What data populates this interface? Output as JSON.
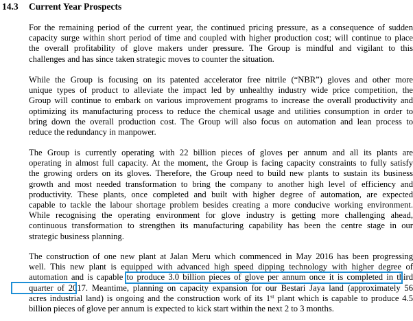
{
  "section": {
    "number": "14.3",
    "title": "Current Year Prospects"
  },
  "paragraphs": [
    [
      "For the remaining period of the current year, the continued pricing pressure, as a consequence of sudden",
      "capacity surge within short period of time and coupled with higher production cost; will continue to place",
      "the overall profitability of glove makers under pressure. The Group is mindful and vigilant to this",
      "challenges and has since taken strategic moves to counter the situation."
    ],
    [
      "While the Group is focusing on its patented accelerator free nitrile (“NBR”) gloves and other more",
      "unique types of product to alleviate the impact led by unhealthy industry wide price competition, the",
      "Group will continue to embark on various improvement programs to increase the overall productivity and",
      "optimizing its manufacturing process to reduce the chemical usage and utilities consumption in order to",
      "bring down the overall production cost. The Group will also focus on automation and lean process to",
      "reduce the redundancy in manpower."
    ],
    [
      "The Group is currently operating with 22 billion pieces of gloves per annum and all its plants are",
      "operating in almost full capacity. At the moment, the Group is facing capacity constraints to fully satisfy",
      "the growing orders on its gloves. Therefore, the Group need to build new plants to sustain its business",
      "growth and most needed transformation to bring the company to another high level of efficiency and",
      "productivity. These plants, once completed and built with higher degree of automation, are expected",
      "capable to tackle the labour shortage problem besides creating a more conducive working environment.",
      "While recognising the operating environment for glove industry is getting more challenging ahead,",
      "continuous transformation to strengthen its manufacturing capability has been the centre stage in our",
      "strategic business planning."
    ]
  ],
  "last_paragraph": {
    "line1": "The construction of one new plant at Jalan Meru which commenced in May 2016 has been progressing",
    "line2": "well. This new plant is equipped with advanced high speed dipping technology with higher degree of",
    "line3": "automation and is capable to produce 3.0 billion pieces of glove per annum once it is completed in third",
    "line4": "quarter of 2017. Meantime, planning on capacity expansion for our Bestari Jaya land (approximately 56",
    "line5_a": "acres industrial land) is ongoing and the construction work of its 1",
    "line5_sup": "st",
    "line5_b": " plant which is capable to produce 4.5",
    "line6": "billion pieces of glove per annum is expected to kick start within the next 2 to 3 months."
  },
  "highlight_color": "#1e8fd6"
}
